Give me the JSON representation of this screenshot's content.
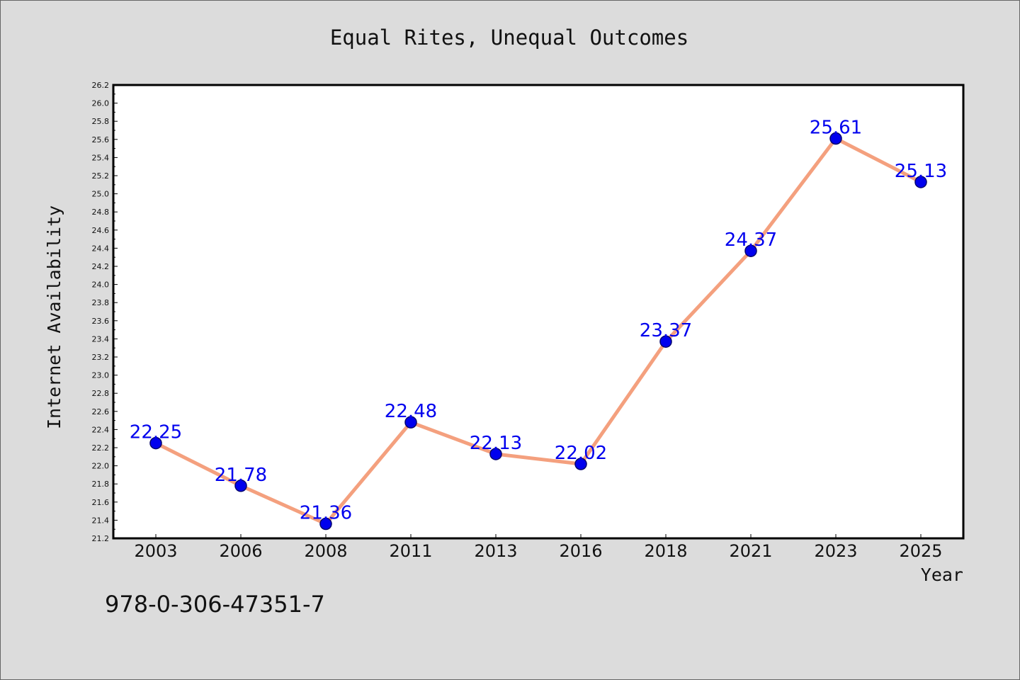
{
  "chart_data": {
    "type": "line",
    "title": "Equal Rites, Unequal Outcomes",
    "xlabel": "Year",
    "ylabel": "Internet Availability",
    "categories": [
      "2003",
      "2006",
      "2008",
      "2011",
      "2013",
      "2016",
      "2018",
      "2021",
      "2023",
      "2025"
    ],
    "series": [
      {
        "values": [
          22.25,
          21.78,
          21.36,
          22.48,
          22.13,
          22.02,
          23.37,
          24.37,
          25.61,
          25.13
        ],
        "labels": [
          "22.25",
          "21.78",
          "21.36",
          "22.48",
          "22.13",
          "22.02",
          "23.37",
          "24.37",
          "25.61",
          "25.13"
        ]
      }
    ],
    "ylim": [
      21.2,
      26.2
    ],
    "yticks": [
      "21.2",
      "21.4",
      "21.6",
      "21.8",
      "22.0",
      "22.2",
      "22.4",
      "22.6",
      "22.8",
      "23.0",
      "23.2",
      "23.4",
      "23.6",
      "23.8",
      "24.0",
      "24.2",
      "24.4",
      "24.6",
      "24.8",
      "25.0",
      "25.2",
      "25.4",
      "25.6",
      "25.8",
      "26.0",
      "26.2"
    ],
    "grid": false,
    "legend": "none",
    "colors": {
      "line": "#f4a07e",
      "marker": "#0000ee",
      "data_label": "#0000ee",
      "plot_background": "#ffffff",
      "figure_background": "#dcdcdc"
    }
  },
  "footer": {
    "isbn": "978-0-306-47351-7"
  }
}
